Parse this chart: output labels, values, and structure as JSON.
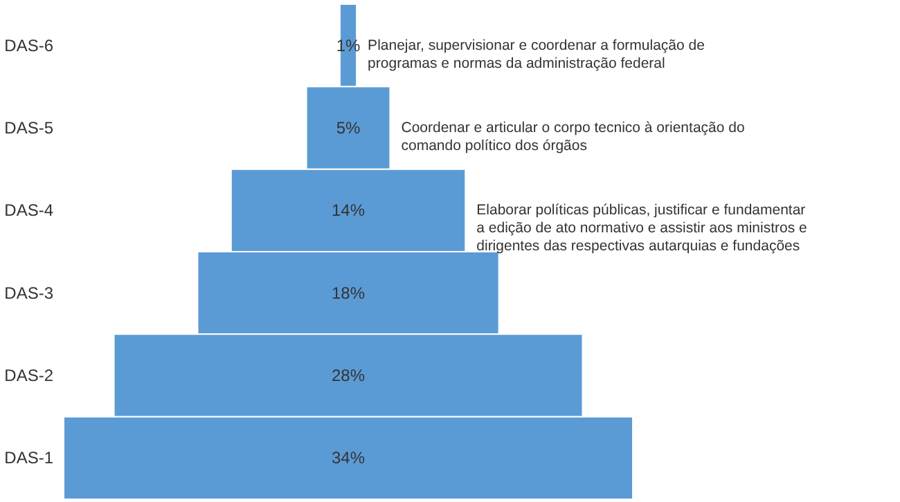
{
  "chart_data": {
    "type": "other",
    "categories": [
      "DAS-6",
      "DAS-5",
      "DAS-4",
      "DAS-3",
      "DAS-2",
      "DAS-1"
    ],
    "values": [
      1,
      5,
      14,
      18,
      28,
      34
    ],
    "value_labels": [
      "1%",
      "5%",
      "14%",
      "18%",
      "28%",
      "34%"
    ],
    "color": "#5b9bd5",
    "annotations": [
      "Planejar, supervisionar e coordenar a formulação de\nprogramas e normas da administração federal",
      "Coordenar e articular o corpo tecnico à orientação do\ncomando político dos órgãos",
      "Elaborar políticas públicas, justificar e fundamentar\na edição de ato normativo e assistir aos ministros e\ndirigentes das respectivas autarquias e fundações"
    ]
  }
}
